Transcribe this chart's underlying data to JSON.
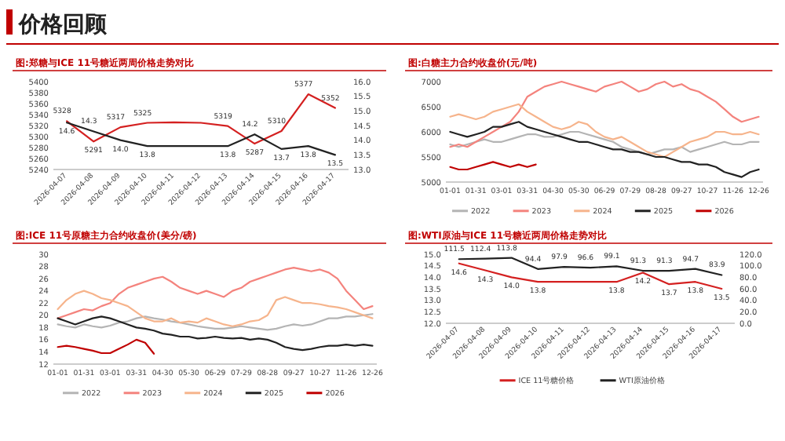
{
  "chart_data": [
    {
      "type": "other",
      "title": "价格回顾"
    },
    {
      "type": "line",
      "title": "图:郑糖与ICE 11号糖近两周价格走势对比",
      "categories": [
        "2026-04-07",
        "2026-04-08",
        "2026-04-09",
        "2026-04-10",
        "2026-04-11",
        "2026-04-12",
        "2026-04-13",
        "2026-04-14",
        "2026-04-15",
        "2026-04-16",
        "2026-04-17"
      ],
      "ylim": [
        5240,
        5400
      ],
      "yticks": [
        5240,
        5260,
        5280,
        5300,
        5320,
        5340,
        5360,
        5380,
        5400
      ],
      "y2lim": [
        13.0,
        16.0
      ],
      "y2ticks": [
        {
          "value": 13,
          "label": "13.0"
        },
        {
          "value": 13.5,
          "label": "13.5"
        },
        {
          "value": 14,
          "label": "14.0"
        },
        {
          "value": 14.5,
          "label": "14.5"
        },
        {
          "value": 15,
          "label": "15.0"
        },
        {
          "value": 15.5,
          "label": "15.5"
        },
        {
          "value": 16,
          "label": "16.0"
        }
      ],
      "series": [
        {
          "color": "#d42020",
          "values": [
            5328,
            5291,
            5317,
            5325,
            5326,
            5325,
            5319,
            5287,
            5310,
            5377,
            5352
          ],
          "value_labels": [
            "5328",
            "5291",
            "5317",
            "5325",
            null,
            null,
            "5319",
            "5287",
            "5310",
            "5377",
            "5352"
          ]
        },
        {
          "color": "#222222",
          "axis": "y2",
          "values": [
            14.6,
            14.3,
            14.0,
            13.8,
            13.8,
            13.8,
            13.8,
            14.2,
            13.7,
            13.8,
            13.5
          ],
          "value_labels": [
            "14.6",
            "14.3",
            "14.0",
            "13.8",
            null,
            null,
            "13.8",
            "14.2",
            "13.7",
            "13.8",
            "13.5"
          ]
        }
      ]
    },
    {
      "type": "line",
      "title": "图:白糖主力合约收盘价(元/吨)",
      "categories": [
        "01-01",
        null,
        null,
        "01-31",
        null,
        null,
        "03-01",
        null,
        null,
        "03-31",
        null,
        null,
        "04-30",
        null,
        null,
        "05-30",
        null,
        null,
        "06-29",
        null,
        null,
        "07-29",
        null,
        null,
        "08-28",
        null,
        null,
        "09-27",
        null,
        null,
        "10-27",
        null,
        null,
        "11-26",
        null,
        null,
        "12-26"
      ],
      "ylim": [
        5000,
        7000
      ],
      "yticks": [
        5000,
        5500,
        6000,
        6500,
        7000
      ],
      "legend": "bottom",
      "series": [
        {
          "name": "2022",
          "color": "#b4b4b4",
          "values": [
            5750,
            5700,
            5750,
            5800,
            5850,
            5800,
            5800,
            5850,
            5900,
            5950,
            5950,
            5900,
            5900,
            5950,
            6000,
            6000,
            5950,
            5900,
            5850,
            5800,
            5700,
            5650,
            5600,
            5550,
            5600,
            5650,
            5650,
            5700,
            5600,
            5650,
            5700,
            5750,
            5800,
            5750,
            5750,
            5800,
            5800
          ]
        },
        {
          "name": "2023",
          "color": "#f4837d",
          "values": [
            5700,
            5750,
            5700,
            5800,
            5900,
            6000,
            6100,
            6200,
            6400,
            6700,
            6800,
            6900,
            6950,
            7000,
            6950,
            6900,
            6850,
            6800,
            6900,
            6950,
            7000,
            6900,
            6800,
            6850,
            6950,
            7000,
            6900,
            6950,
            6850,
            6800,
            6700,
            6600,
            6450,
            6300,
            6200,
            6250,
            6300
          ]
        },
        {
          "name": "2024",
          "color": "#f6b48c",
          "values": [
            6300,
            6350,
            6300,
            6250,
            6300,
            6400,
            6450,
            6500,
            6550,
            6400,
            6300,
            6200,
            6100,
            6050,
            6100,
            6200,
            6150,
            6000,
            5900,
            5850,
            5900,
            5800,
            5700,
            5600,
            5550,
            5500,
            5600,
            5700,
            5800,
            5850,
            5900,
            6000,
            6000,
            5950,
            5950,
            6000,
            5950
          ]
        },
        {
          "name": "2025",
          "color": "#222222",
          "values": [
            6000,
            5950,
            5900,
            5950,
            6000,
            6100,
            6100,
            6150,
            6200,
            6100,
            6050,
            6000,
            5950,
            5900,
            5850,
            5800,
            5800,
            5750,
            5700,
            5650,
            5650,
            5600,
            5600,
            5550,
            5500,
            5500,
            5450,
            5400,
            5400,
            5350,
            5350,
            5300,
            5200,
            5150,
            5100,
            5200,
            5250
          ]
        },
        {
          "name": "2026",
          "color": "#c00000",
          "values": [
            5300,
            5250,
            5250,
            5300,
            5350,
            5400,
            5350,
            5300,
            5350,
            5300,
            5350,
            null,
            null,
            null,
            null,
            null,
            null,
            null,
            null,
            null,
            null,
            null,
            null,
            null,
            null,
            null,
            null,
            null,
            null,
            null,
            null,
            null,
            null,
            null,
            null,
            null,
            null
          ]
        }
      ]
    },
    {
      "type": "line",
      "title": "图:ICE 11号原糖主力合约收盘价(美分/磅)",
      "categories": [
        "01-01",
        null,
        null,
        "01-31",
        null,
        null,
        "03-01",
        null,
        null,
        "03-31",
        null,
        null,
        "04-30",
        null,
        null,
        "05-30",
        null,
        null,
        "06-29",
        null,
        null,
        "07-29",
        null,
        null,
        "08-28",
        null,
        null,
        "09-27",
        null,
        null,
        "10-27",
        null,
        null,
        "11-26",
        null,
        null,
        "12-26"
      ],
      "ylim": [
        12,
        30
      ],
      "yticks": [
        12,
        14,
        16,
        18,
        20,
        22,
        24,
        26,
        28,
        30
      ],
      "legend": "bottom",
      "series": [
        {
          "name": "2022",
          "color": "#b4b4b4",
          "values": [
            18.5,
            18.2,
            18.0,
            18.5,
            18.2,
            18.0,
            18.3,
            18.8,
            19.0,
            19.5,
            19.8,
            19.5,
            19.3,
            19.0,
            18.8,
            18.5,
            18.2,
            18.0,
            17.8,
            17.8,
            18.0,
            18.2,
            18.0,
            17.8,
            17.6,
            17.8,
            18.2,
            18.5,
            18.3,
            18.5,
            19.0,
            19.5,
            19.5,
            19.8,
            19.8,
            20.0,
            20.2
          ]
        },
        {
          "name": "2023",
          "color": "#f4837d",
          "values": [
            19.5,
            20.0,
            20.5,
            21.0,
            20.8,
            21.5,
            22.0,
            23.5,
            24.5,
            25.0,
            25.5,
            26.0,
            26.3,
            25.5,
            24.5,
            24.0,
            23.5,
            24.0,
            23.5,
            23.0,
            24.0,
            24.5,
            25.5,
            26.0,
            26.5,
            27.0,
            27.5,
            27.8,
            27.5,
            27.2,
            27.5,
            27.0,
            26.0,
            24.0,
            22.5,
            21.0,
            21.5
          ]
        },
        {
          "name": "2024",
          "color": "#f6b48c",
          "values": [
            21.0,
            22.5,
            23.5,
            24.0,
            23.5,
            22.8,
            22.5,
            22.0,
            21.5,
            20.5,
            19.5,
            19.0,
            19.0,
            19.5,
            18.8,
            19.0,
            18.8,
            19.5,
            19.0,
            18.5,
            18.2,
            18.5,
            19.0,
            19.2,
            20.0,
            22.5,
            23.0,
            22.5,
            22.0,
            22.0,
            21.8,
            21.5,
            21.3,
            21.0,
            20.5,
            20.0,
            19.5
          ]
        },
        {
          "name": "2025",
          "color": "#222222",
          "values": [
            19.5,
            19.0,
            18.5,
            19.0,
            19.5,
            19.8,
            19.5,
            19.0,
            18.5,
            18.0,
            17.8,
            17.5,
            17.0,
            16.8,
            16.5,
            16.5,
            16.2,
            16.3,
            16.5,
            16.3,
            16.2,
            16.3,
            16.0,
            16.2,
            16.0,
            15.5,
            14.8,
            14.5,
            14.3,
            14.5,
            14.8,
            15.0,
            15.0,
            15.2,
            15.0,
            15.2,
            15.0
          ]
        },
        {
          "name": "2026",
          "color": "#c00000",
          "values": [
            14.8,
            15.0,
            14.8,
            14.5,
            14.2,
            13.8,
            13.8,
            14.5,
            15.2,
            16.0,
            15.5,
            13.7,
            null,
            null,
            null,
            null,
            null,
            null,
            null,
            null,
            null,
            null,
            null,
            null,
            null,
            null,
            null,
            null,
            null,
            null,
            null,
            null,
            null,
            null,
            null,
            null,
            null
          ]
        }
      ]
    },
    {
      "type": "line",
      "title": "图:WTI原油与ICE 11号糖近两周价格走势对比",
      "categories": [
        "2026-04-07",
        "2026-04-08",
        "2026-04-09",
        "2026-04-10",
        "2026-04-11",
        "2026-04-12",
        "2026-04-13",
        "2026-04-14",
        "2026-04-15",
        "2026-04-16",
        "2026-04-17"
      ],
      "ylim": [
        12.0,
        15.0
      ],
      "yticks": [
        {
          "value": 12,
          "label": "12.0"
        },
        {
          "value": 12.5,
          "label": "12.5"
        },
        {
          "value": 13,
          "label": "13.0"
        },
        {
          "value": 13.5,
          "label": "13.5"
        },
        {
          "value": 14,
          "label": "14.0"
        },
        {
          "value": 14.5,
          "label": "14.5"
        },
        {
          "value": 15,
          "label": "15.0"
        }
      ],
      "y2lim": [
        0,
        120
      ],
      "y2ticks": [
        {
          "value": 0,
          "label": "0.0"
        },
        {
          "value": 20,
          "label": "20.0"
        },
        {
          "value": 40,
          "label": "40.0"
        },
        {
          "value": 60,
          "label": "60.0"
        },
        {
          "value": 80,
          "label": "80.0"
        },
        {
          "value": 100,
          "label": "100.0"
        },
        {
          "value": 120,
          "label": "120.0"
        }
      ],
      "legend": "bottom",
      "series": [
        {
          "name": "ICE 11号糖价格",
          "color": "#d42020",
          "values": [
            14.6,
            14.3,
            14.0,
            13.8,
            13.8,
            13.8,
            13.8,
            14.2,
            13.7,
            13.8,
            13.5
          ],
          "value_labels": [
            "14.6",
            "14.3",
            "14.0",
            "13.8",
            null,
            null,
            "13.8",
            "14.2",
            "13.7",
            "13.8",
            "13.5"
          ]
        },
        {
          "name": "WTI原油价格",
          "color": "#222222",
          "axis": "y2",
          "values": [
            111.5,
            112.4,
            113.8,
            94.4,
            97.9,
            96.6,
            99.1,
            91.3,
            91.3,
            94.7,
            83.9
          ],
          "value_labels": [
            "111.5",
            "112.4",
            "113.8",
            "94.4",
            "97.9",
            "96.6",
            "99.1",
            "91.3",
            "91.3",
            "94.7",
            "83.9"
          ]
        }
      ]
    }
  ]
}
